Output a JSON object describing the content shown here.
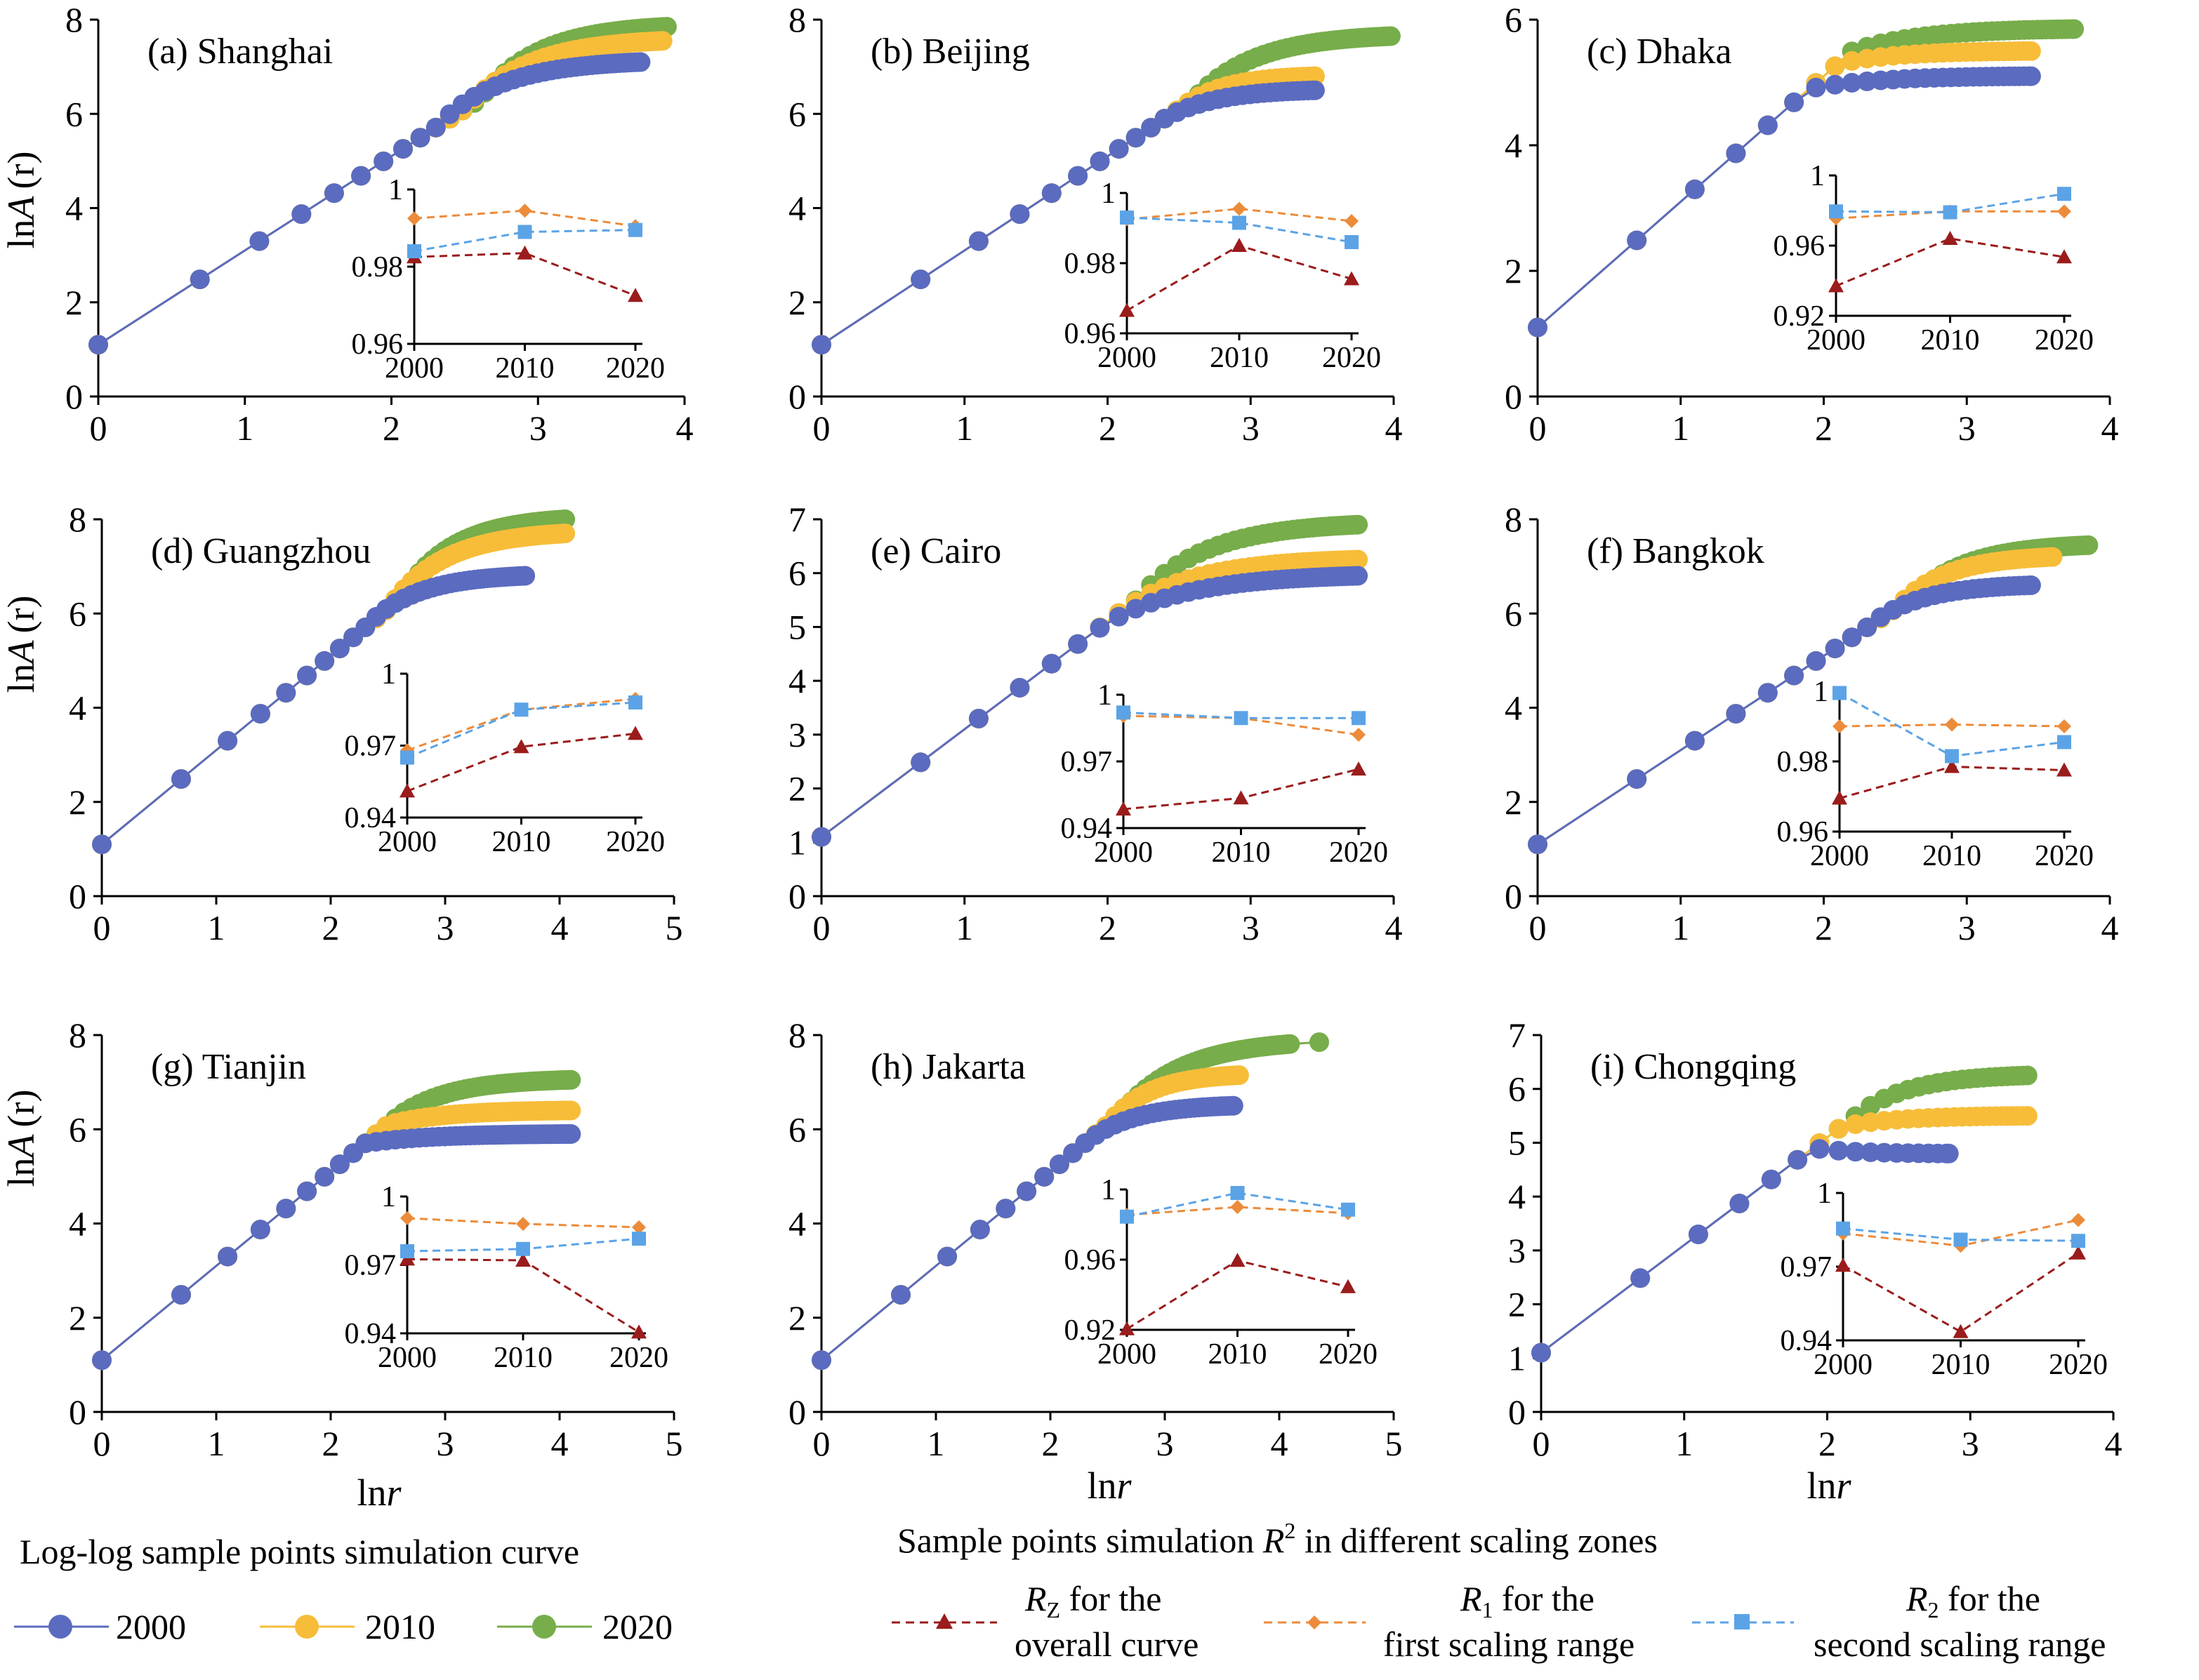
{
  "legend": {
    "curve_title": "Log-log sample points simulation curve",
    "r2_title_pre": "Sample points simulation ",
    "r2_title_r": "R",
    "r2_title_sup": "2",
    "r2_title_post": " in different scaling zones",
    "items": [
      {
        "label": "2000",
        "color": "#5b6bbf"
      },
      {
        "label": "2010",
        "color": "#f7bd39"
      },
      {
        "label": "2020",
        "color": "#77ad4a"
      }
    ],
    "r2_items": [
      {
        "sym": "R",
        "sub": "Z",
        "line1": " for the",
        "line2": "overall  curve",
        "color": "#9b1c1c",
        "marker": "triangle"
      },
      {
        "sym": "R",
        "sub": "1",
        "line1": " for the",
        "line2": "first scaling range",
        "color": "#ec8b3a",
        "marker": "diamond"
      },
      {
        "sym": "R",
        "sub": "2",
        "line1": " for the",
        "line2": "second scaling range",
        "color": "#5ba3e6",
        "marker": "square"
      }
    ]
  },
  "axis_labels": {
    "y_main": "ln",
    "y_italic": "A",
    "y_paren": "(r)",
    "x_main": "ln",
    "x_italic": "r"
  },
  "colors": {
    "y2000": "#5b6bbf",
    "y2010": "#f7bd39",
    "y2020": "#77ad4a",
    "rz": "#9b1c1c",
    "r1": "#ec8b3a",
    "r2": "#5ba3e6"
  },
  "chart_data": [
    {
      "type": "scatter",
      "panel": "a",
      "title": "(a) Shanghai",
      "xlim": [
        0,
        4
      ],
      "ylim": [
        0,
        8
      ],
      "xticks": [
        0,
        1,
        2,
        3,
        4
      ],
      "yticks": [
        0,
        2,
        4,
        6,
        8
      ],
      "series": [
        {
          "name": "2000",
          "end_x": 3.7,
          "end_y": 7.1
        },
        {
          "name": "2010",
          "end_x": 3.85,
          "end_y": 7.55
        },
        {
          "name": "2020",
          "end_x": 3.88,
          "end_y": 7.85
        }
      ],
      "inset": {
        "x": [
          "2000",
          "2010",
          "2020"
        ],
        "ylim": [
          0.96,
          1.0
        ],
        "yticks": [
          "0.96",
          "0.98",
          "1"
        ],
        "Rz": [
          0.9825,
          0.9835,
          0.9725
        ],
        "R1": [
          0.9925,
          0.9945,
          0.9905
        ],
        "R2": [
          0.984,
          0.989,
          0.9895
        ]
      }
    },
    {
      "type": "scatter",
      "panel": "b",
      "title": "(b) Beijing",
      "xlim": [
        0,
        4
      ],
      "ylim": [
        0,
        8
      ],
      "xticks": [
        0,
        1,
        2,
        3,
        4
      ],
      "yticks": [
        0,
        2,
        4,
        6,
        8
      ],
      "series": [
        {
          "name": "2000",
          "end_x": 3.45,
          "end_y": 6.5
        },
        {
          "name": "2010",
          "end_x": 3.45,
          "end_y": 6.8
        },
        {
          "name": "2020",
          "end_x": 3.98,
          "end_y": 7.65
        }
      ],
      "inset": {
        "x": [
          "2000",
          "2010",
          "2020"
        ],
        "ylim": [
          0.96,
          1.0
        ],
        "yticks": [
          "0.96",
          "0.98",
          "1"
        ],
        "Rz": [
          0.9665,
          0.985,
          0.9755
        ],
        "R1": [
          0.9925,
          0.9955,
          0.992
        ],
        "R2": [
          0.993,
          0.9915,
          0.986
        ]
      }
    },
    {
      "type": "scatter",
      "panel": "c",
      "title": "(c) Dhaka",
      "xlim": [
        0,
        4
      ],
      "ylim": [
        0,
        6
      ],
      "xticks": [
        0,
        1,
        2,
        3,
        4
      ],
      "yticks": [
        0,
        2,
        4,
        6
      ],
      "series": [
        {
          "name": "2000",
          "end_x": 3.45,
          "end_y": 5.1
        },
        {
          "name": "2010",
          "end_x": 3.45,
          "end_y": 5.5
        },
        {
          "name": "2020",
          "end_x": 3.75,
          "end_y": 5.85
        }
      ],
      "inset": {
        "x": [
          "2000",
          "2010",
          "2020"
        ],
        "ylim": [
          0.92,
          1.0
        ],
        "yticks": [
          "0.92",
          "0.96",
          "1"
        ],
        "Rz": [
          0.937,
          0.964,
          0.9535
        ],
        "R1": [
          0.9755,
          0.9795,
          0.9795
        ],
        "R2": [
          0.9795,
          0.979,
          0.9895
        ]
      }
    },
    {
      "type": "scatter",
      "panel": "d",
      "title": "(d) Guangzhou",
      "xlim": [
        0,
        5
      ],
      "ylim": [
        0,
        8
      ],
      "xticks": [
        0,
        1,
        2,
        3,
        4,
        5
      ],
      "yticks": [
        0,
        2,
        4,
        6,
        8
      ],
      "series": [
        {
          "name": "2000",
          "end_x": 3.7,
          "end_y": 6.8
        },
        {
          "name": "2010",
          "end_x": 4.05,
          "end_y": 7.7
        },
        {
          "name": "2020",
          "end_x": 4.05,
          "end_y": 8.0
        }
      ],
      "inset": {
        "x": [
          "2000",
          "2010",
          "2020"
        ],
        "ylim": [
          0.94,
          1.0
        ],
        "yticks": [
          "0.94",
          "0.97",
          "1"
        ],
        "Rz": [
          0.951,
          0.9695,
          0.975
        ],
        "R1": [
          0.968,
          0.985,
          0.9895
        ],
        "R2": [
          0.965,
          0.985,
          0.988
        ]
      }
    },
    {
      "type": "scatter",
      "panel": "e",
      "title": "(e) Cairo",
      "xlim": [
        0,
        4
      ],
      "ylim": [
        0,
        7
      ],
      "xticks": [
        0,
        1,
        2,
        3,
        4
      ],
      "yticks": [
        0,
        1,
        2,
        3,
        4,
        5,
        6,
        7
      ],
      "series": [
        {
          "name": "2000",
          "end_x": 3.75,
          "end_y": 5.95
        },
        {
          "name": "2010",
          "end_x": 3.75,
          "end_y": 6.25
        },
        {
          "name": "2020",
          "end_x": 3.75,
          "end_y": 6.9
        }
      ],
      "inset": {
        "x": [
          "2000",
          "2010",
          "2020"
        ],
        "ylim": [
          0.94,
          1.0
        ],
        "yticks": [
          "0.94",
          "0.97",
          "1"
        ],
        "Rz": [
          0.9485,
          0.9535,
          0.9665
        ],
        "R1": [
          0.9905,
          0.9895,
          0.982
        ],
        "R2": [
          0.992,
          0.9895,
          0.9895
        ]
      }
    },
    {
      "type": "scatter",
      "panel": "f",
      "title": "(f) Bangkok",
      "xlim": [
        0,
        4
      ],
      "ylim": [
        0,
        8
      ],
      "xticks": [
        0,
        1,
        2,
        3,
        4
      ],
      "yticks": [
        0,
        2,
        4,
        6,
        8
      ],
      "series": [
        {
          "name": "2000",
          "end_x": 3.45,
          "end_y": 6.6
        },
        {
          "name": "2010",
          "end_x": 3.6,
          "end_y": 7.2
        },
        {
          "name": "2020",
          "end_x": 3.85,
          "end_y": 7.45
        }
      ],
      "inset": {
        "x": [
          "2000",
          "2010",
          "2020"
        ],
        "ylim": [
          0.96,
          1.0
        ],
        "yticks": [
          "0.96",
          "0.98",
          "1"
        ],
        "Rz": [
          0.9695,
          0.9785,
          0.9775
        ],
        "R1": [
          0.99,
          0.9905,
          0.99
        ],
        "R2": [
          0.9995,
          0.9815,
          0.9855
        ]
      }
    },
    {
      "type": "scatter",
      "panel": "g",
      "title": "(g) Tianjin",
      "xlim": [
        0,
        5
      ],
      "ylim": [
        0,
        8
      ],
      "xticks": [
        0,
        1,
        2,
        3,
        4,
        5
      ],
      "yticks": [
        0,
        2,
        4,
        6,
        8
      ],
      "series": [
        {
          "name": "2000",
          "end_x": 4.1,
          "end_y": 5.9
        },
        {
          "name": "2010",
          "end_x": 4.1,
          "end_y": 6.4
        },
        {
          "name": "2020",
          "end_x": 4.1,
          "end_y": 7.05
        }
      ],
      "inset": {
        "x": [
          "2000",
          "2010",
          "2020"
        ],
        "ylim": [
          0.94,
          1.0
        ],
        "yticks": [
          "0.94",
          "0.97",
          "1"
        ],
        "Rz": [
          0.9725,
          0.972,
          0.9405
        ],
        "R1": [
          0.9905,
          0.988,
          0.9865
        ],
        "R2": [
          0.976,
          0.977,
          0.9815
        ]
      }
    },
    {
      "type": "scatter",
      "panel": "h",
      "title": "(h) Jakarta",
      "xlim": [
        0,
        5
      ],
      "ylim": [
        0,
        8
      ],
      "xticks": [
        0,
        1,
        2,
        3,
        4,
        5
      ],
      "yticks": [
        0,
        2,
        4,
        6,
        8
      ],
      "series": [
        {
          "name": "2000",
          "end_x": 3.6,
          "end_y": 6.5
        },
        {
          "name": "2010",
          "end_x": 3.65,
          "end_y": 7.15
        },
        {
          "name": "2020",
          "end_x": 4.35,
          "end_y": 7.85
        }
      ],
      "inset": {
        "x": [
          "2000",
          "2010",
          "2020"
        ],
        "ylim": [
          0.92,
          1.0
        ],
        "yticks": [
          "0.92",
          "0.96",
          "1"
        ],
        "Rz": [
          0.9205,
          0.9595,
          0.9445
        ],
        "R1": [
          0.9855,
          0.99,
          0.9865
        ],
        "R2": [
          0.9845,
          0.998,
          0.9885
        ]
      }
    },
    {
      "type": "scatter",
      "panel": "i",
      "title": "(i) Chongqing",
      "xlim": [
        0,
        4
      ],
      "ylim": [
        0,
        7
      ],
      "xticks": [
        0,
        1,
        2,
        3,
        4
      ],
      "yticks": [
        0,
        1,
        2,
        3,
        4,
        5,
        6,
        7
      ],
      "series": [
        {
          "name": "2000",
          "end_x": 2.85,
          "end_y": 4.8
        },
        {
          "name": "2010",
          "end_x": 3.4,
          "end_y": 5.5
        },
        {
          "name": "2020",
          "end_x": 3.4,
          "end_y": 6.25
        }
      ],
      "inset": {
        "x": [
          "2000",
          "2010",
          "2020"
        ],
        "ylim": [
          0.94,
          1.0
        ],
        "yticks": [
          "0.94",
          "0.97",
          "1"
        ],
        "Rz": [
          0.9705,
          0.9435,
          0.9755
        ],
        "R1": [
          0.9835,
          0.9785,
          0.989
        ],
        "R2": [
          0.9855,
          0.981,
          0.9805
        ]
      }
    }
  ]
}
